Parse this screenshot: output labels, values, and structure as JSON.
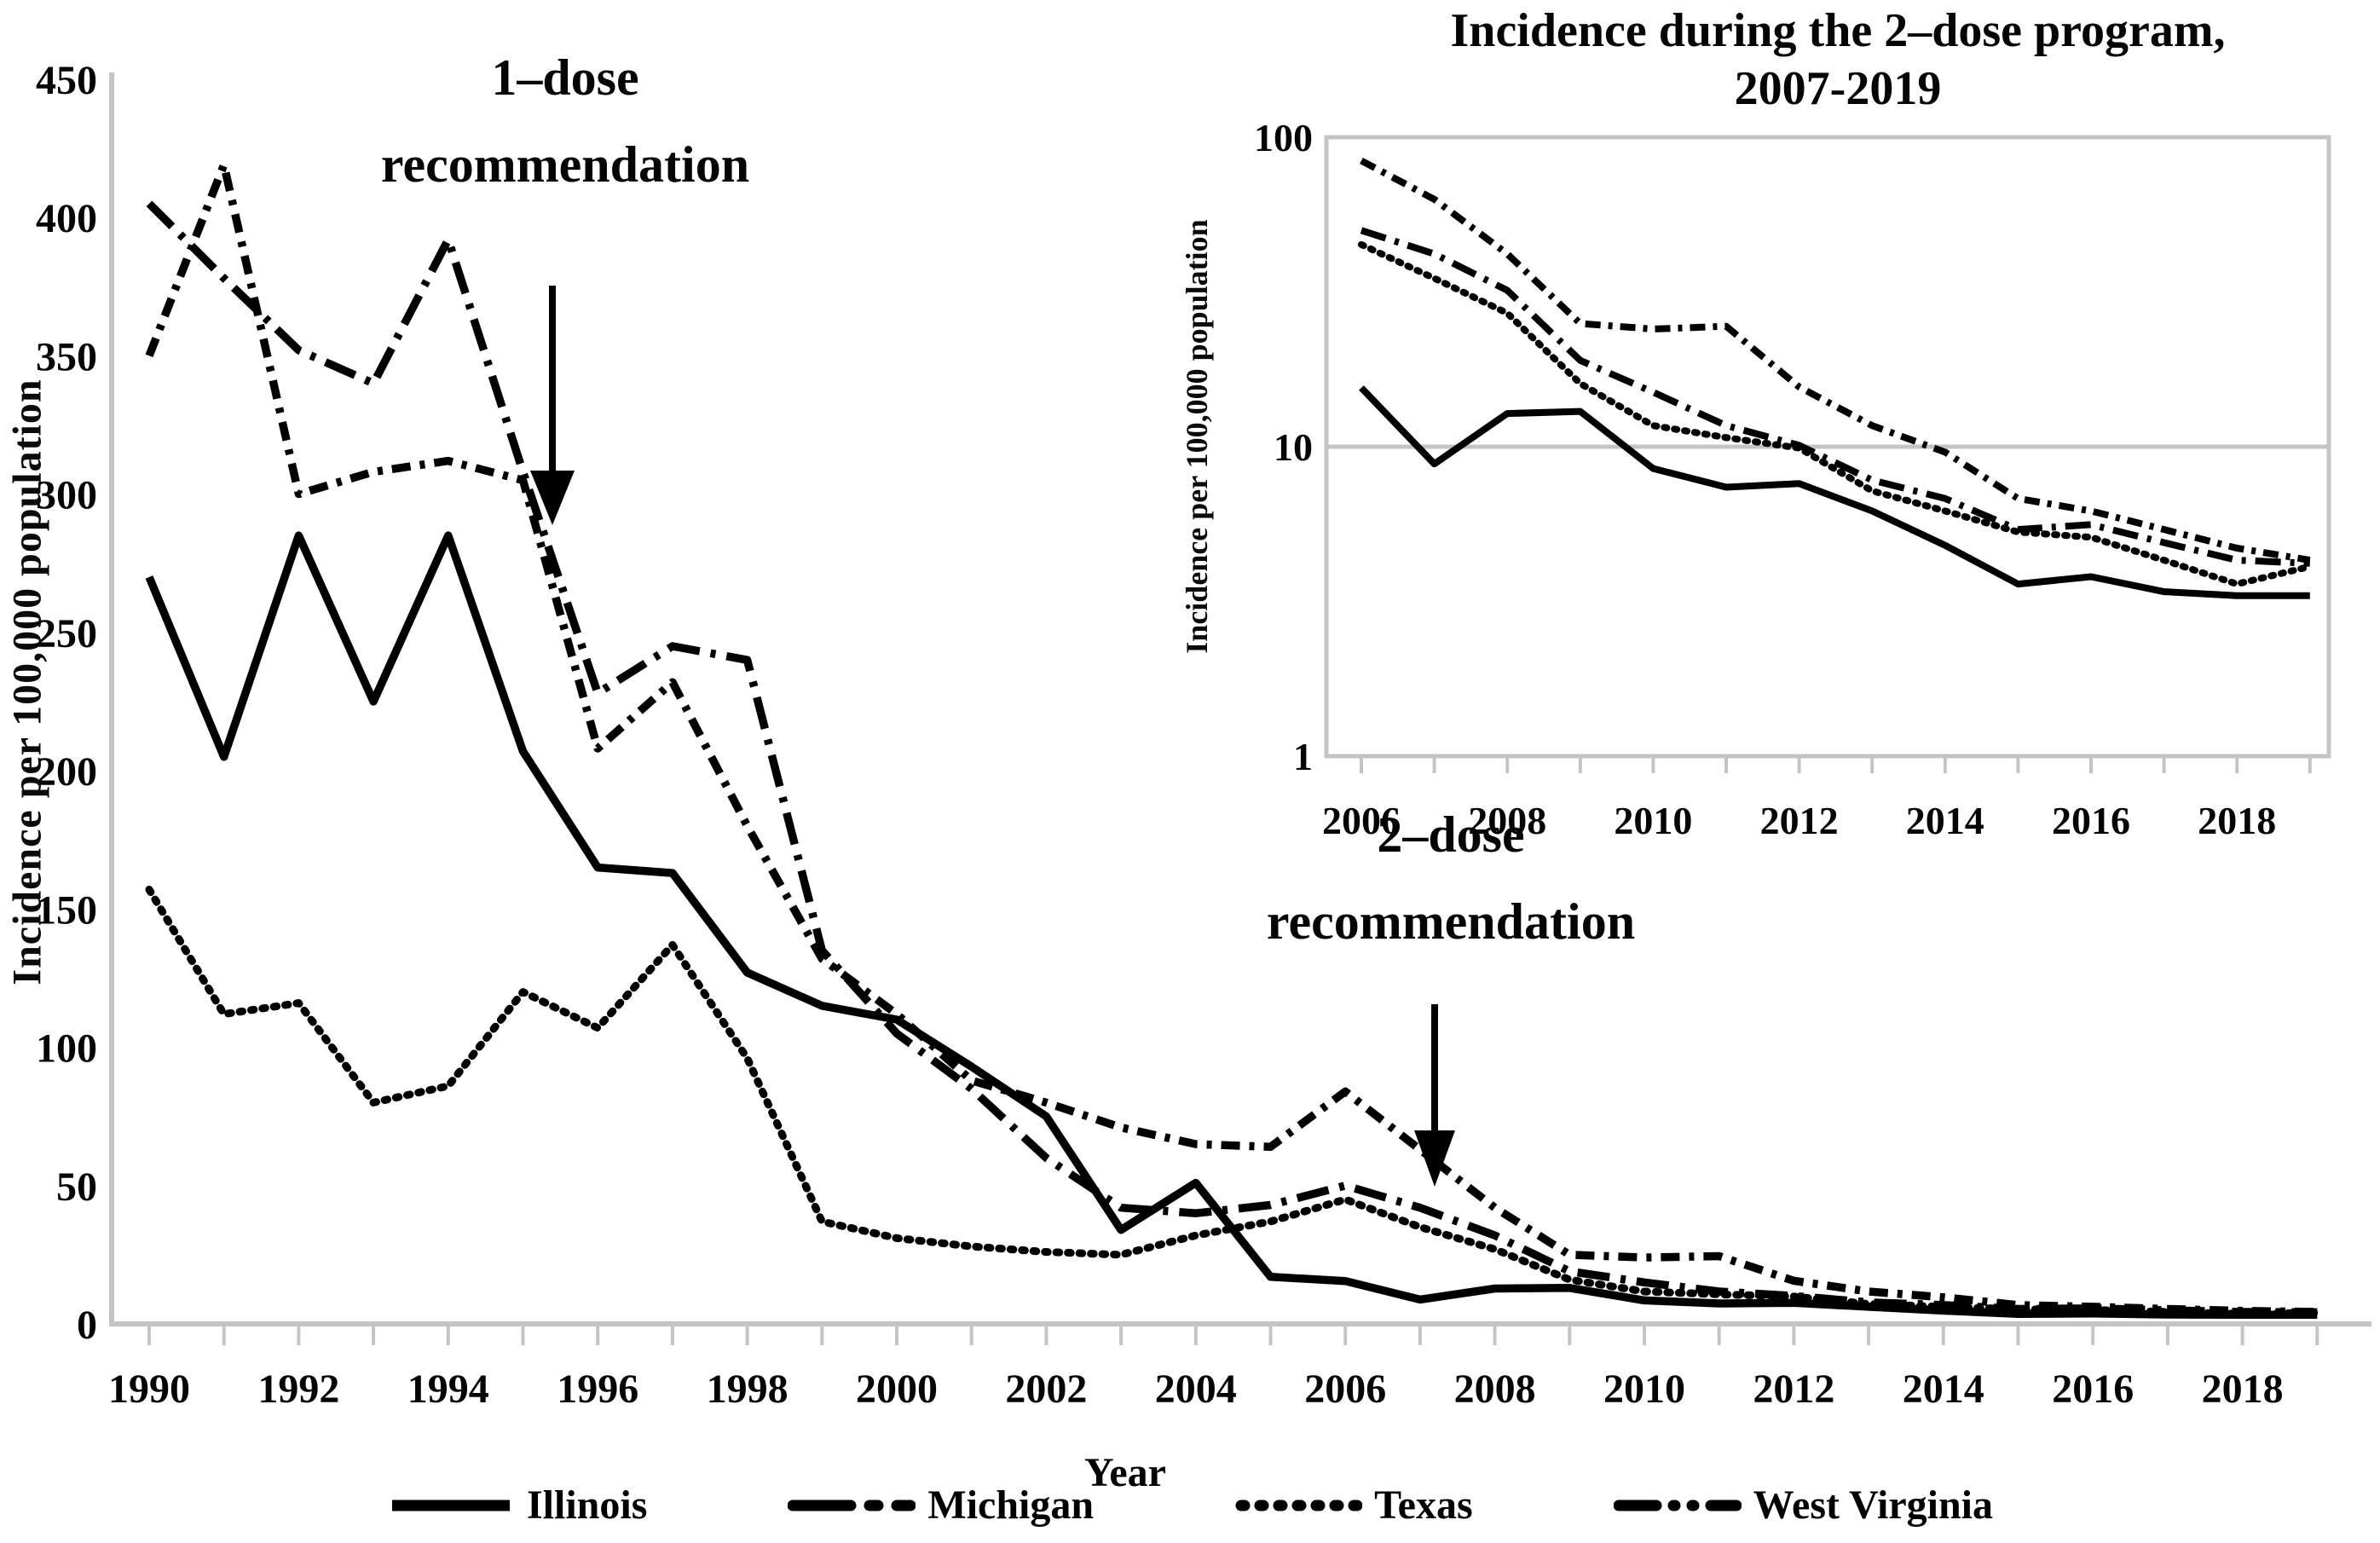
{
  "page": {
    "background_color": "#ffffff",
    "line_color": "#000000",
    "axis_color": "#c4c4c4",
    "text_color": "#000000"
  },
  "main_chart": {
    "x_axis_label": "Year",
    "y_axis_label": "Incidence per 100,000 population"
  },
  "inset_chart": {
    "title_line1": "Incidence during the 2–dose program,",
    "title_line2": "2007-2019",
    "y_axis_label": "Incidence per 100,000 population"
  },
  "annotations": [
    {
      "id": "one-dose",
      "line1": "1–dose",
      "line2": "recommendation",
      "target_year": 1995
    },
    {
      "id": "two-dose",
      "line1": "2–dose",
      "line2": "recommendation",
      "target_year": 2007
    }
  ],
  "legend": {
    "items": [
      {
        "label": "Illinois",
        "style": "solid"
      },
      {
        "label": "Michigan",
        "style": "long-dash-dot"
      },
      {
        "label": "Texas",
        "style": "dotted"
      },
      {
        "label": "West Virginia",
        "style": "dash-dot-dot"
      }
    ]
  },
  "chart_data": [
    {
      "type": "line",
      "panel": "main",
      "xlabel": "Year",
      "ylabel": "Incidence per 100,000 population",
      "ylim": [
        0,
        450
      ],
      "y_scale": "linear",
      "grid": false,
      "y_ticks": [
        450,
        400,
        350,
        300,
        250,
        200,
        150,
        100,
        50,
        0
      ],
      "x_tick_labels": [
        1990,
        1992,
        1994,
        1996,
        1998,
        2000,
        2002,
        2004,
        2006,
        2008,
        2010,
        2012,
        2014,
        2016,
        2018
      ],
      "years": [
        1990,
        1991,
        1992,
        1993,
        1994,
        1995,
        1996,
        1997,
        1998,
        1999,
        2000,
        2001,
        2002,
        2003,
        2004,
        2005,
        2006,
        2007,
        2008,
        2009,
        2010,
        2011,
        2012,
        2013,
        2014,
        2015,
        2016,
        2017,
        2018,
        2019
      ],
      "series": [
        {
          "name": "Illinois",
          "style": "solid",
          "values": [
            270,
            205,
            285,
            225,
            285,
            207,
            165,
            163,
            127,
            115,
            110,
            93,
            75,
            34,
            51,
            17,
            15.5,
            8.8,
            12.8,
            13,
            8.5,
            7.4,
            7.6,
            6.2,
            4.8,
            3.6,
            3.8,
            3.4,
            3.3,
            3.3
          ]
        },
        {
          "name": "Michigan",
          "style": "long-dash-dot",
          "values": [
            405,
            378,
            352,
            340,
            392,
            308,
            228,
            245,
            240,
            135,
            105,
            85,
            60,
            42,
            40,
            43,
            50,
            42,
            32,
            19,
            15,
            11.7,
            10.1,
            7.8,
            6.8,
            5.4,
            5.6,
            4.9,
            4.3,
            4.2
          ]
        },
        {
          "name": "Texas",
          "style": "dotted",
          "values": [
            157,
            112,
            116,
            80,
            86,
            120,
            107,
            137,
            96,
            37,
            31,
            28,
            26,
            25,
            32,
            37,
            45,
            35,
            27,
            16,
            11.7,
            10.7,
            9.9,
            7.2,
            6.2,
            5.3,
            5.1,
            4.3,
            3.6,
            4.1
          ]
        },
        {
          "name": "West Virginia",
          "style": "dash-dot-dot",
          "values": [
            350,
            419,
            300,
            308,
            312,
            305,
            208,
            232,
            180,
            132,
            112,
            88,
            80,
            71,
            65,
            64,
            84,
            63,
            42,
            25,
            24,
            24.5,
            15.6,
            11.7,
            9.6,
            6.8,
            6.2,
            5.4,
            4.7,
            4.3
          ]
        }
      ]
    },
    {
      "type": "line",
      "panel": "inset",
      "title": "Incidence during the 2–dose program, 2007-2019",
      "ylabel": "Incidence per 100,000 population",
      "ylim": [
        1,
        100
      ],
      "y_scale": "log",
      "grid": true,
      "y_ticks": [
        100,
        10,
        1
      ],
      "x_tick_labels": [
        2006,
        2008,
        2010,
        2012,
        2014,
        2016,
        2018
      ],
      "years": [
        2006,
        2007,
        2008,
        2009,
        2010,
        2011,
        2012,
        2013,
        2014,
        2015,
        2016,
        2017,
        2018,
        2019
      ],
      "series": [
        {
          "name": "Illinois",
          "style": "solid",
          "values": [
            15.5,
            8.8,
            12.8,
            13,
            8.5,
            7.4,
            7.6,
            6.2,
            4.8,
            3.6,
            3.8,
            3.4,
            3.3,
            3.3
          ]
        },
        {
          "name": "Michigan",
          "style": "long-dash-dot",
          "values": [
            50,
            42,
            32,
            19,
            15,
            11.7,
            10.1,
            7.8,
            6.8,
            5.4,
            5.6,
            4.9,
            4.3,
            4.2
          ]
        },
        {
          "name": "Texas",
          "style": "dotted",
          "values": [
            45,
            35,
            27,
            16,
            11.7,
            10.7,
            9.9,
            7.2,
            6.2,
            5.3,
            5.1,
            4.3,
            3.6,
            4.1
          ]
        },
        {
          "name": "West Virginia",
          "style": "dash-dot-dot",
          "values": [
            84,
            63,
            42,
            25,
            24,
            24.5,
            15.6,
            11.7,
            9.6,
            6.8,
            6.2,
            5.4,
            4.7,
            4.3
          ]
        }
      ]
    }
  ]
}
